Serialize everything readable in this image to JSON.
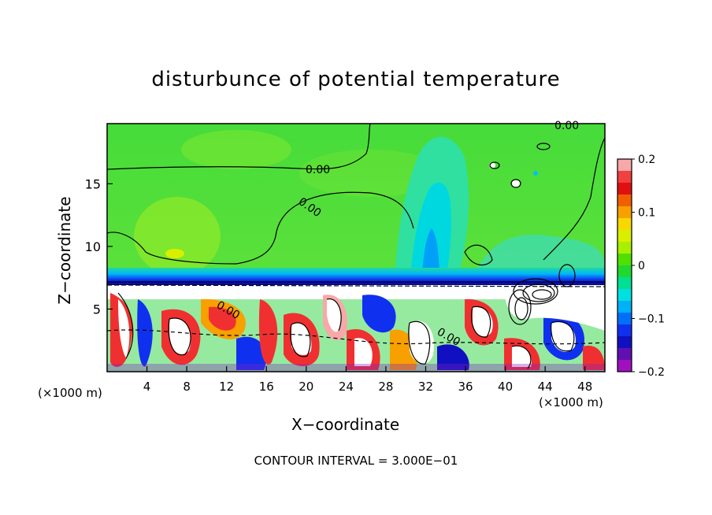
{
  "chart_data": {
    "type": "heatmap",
    "title": "disturbunce of potential temperature",
    "xlabel": "X−coordinate",
    "ylabel": "Z−coordinate",
    "x_unit_label": "(×1000 m)",
    "xlim": [
      0,
      50
    ],
    "ylim": [
      0,
      19.8
    ],
    "x_ticks": [
      4,
      8,
      12,
      16,
      20,
      24,
      28,
      32,
      36,
      40,
      44,
      48
    ],
    "y_ticks": [
      5,
      10,
      15
    ],
    "colorbar": {
      "range": [
        -0.2,
        0.2
      ],
      "ticks": [
        "0.2",
        "0.1",
        "0",
        "−0.1",
        "−0.2"
      ],
      "colors": [
        "#f8a8a8",
        "#f04040",
        "#e01010",
        "#f06000",
        "#f8a000",
        "#f8d800",
        "#d8f000",
        "#a8f000",
        "#50e000",
        "#20d830",
        "#00e090",
        "#00e0e0",
        "#00b0f8",
        "#0070f8",
        "#1030f0",
        "#1010c0",
        "#6010b0",
        "#a010c0"
      ]
    },
    "contour_labels": [
      "0.00",
      "0.00",
      "0.00",
      "0.00",
      "0.00"
    ],
    "contour_interval_text": "CONTOUR INTERVAL =  3.000E−01"
  },
  "colors": {
    "upper_green": "#3ed83e",
    "light_green": "#8ae82a",
    "cyan": "#00e0c8",
    "blue": "#0060f0",
    "navy": "#0000a0",
    "red": "#f03030",
    "white": "#ffffff"
  }
}
